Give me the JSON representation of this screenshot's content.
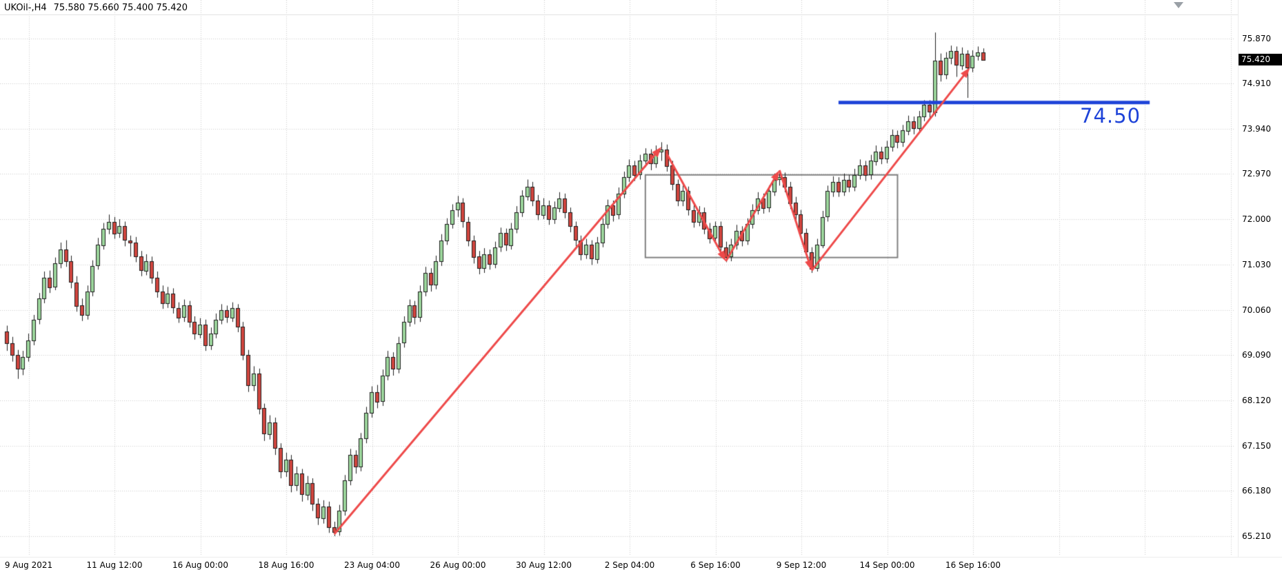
{
  "window": {
    "title_symbol": "UKOil-,H4",
    "title_ohlc": "75.580 75.660 75.400 75.420"
  },
  "chart_data": {
    "type": "candlestick",
    "symbol": "UKOil-",
    "timeframe": "H4",
    "last_candle_ohlc": {
      "open": "75.580",
      "high": "75.660",
      "low": "75.400",
      "close": "75.420"
    },
    "current_price": "75.420",
    "grid": true,
    "visible_price_range": [
      64.95,
      76.25
    ],
    "price_axis_labels": [
      "75.870",
      "74.910",
      "73.940",
      "72.970",
      "72.000",
      "71.030",
      "70.060",
      "69.090",
      "68.120",
      "67.150",
      "66.180",
      "65.210"
    ],
    "time_axis_labels": [
      "9 Aug 2021",
      "11 Aug 12:00",
      "16 Aug 00:00",
      "18 Aug 16:00",
      "23 Aug 04:00",
      "26 Aug 00:00",
      "30 Aug 12:00",
      "2 Sep 04:00",
      "6 Sep 16:00",
      "9 Sep 12:00",
      "14 Sep 00:00",
      "16 Sep 16:00"
    ],
    "candle_format": "[open, high, low, close]",
    "candles": [
      [
        69.6,
        69.72,
        69.18,
        69.35
      ],
      [
        69.35,
        69.48,
        68.95,
        69.1
      ],
      [
        69.1,
        69.2,
        68.58,
        68.8
      ],
      [
        68.8,
        69.18,
        68.66,
        69.05
      ],
      [
        69.05,
        69.55,
        68.95,
        69.4
      ],
      [
        69.4,
        69.95,
        69.3,
        69.85
      ],
      [
        69.85,
        70.42,
        69.75,
        70.3
      ],
      [
        70.3,
        70.88,
        70.2,
        70.75
      ],
      [
        70.75,
        70.9,
        70.42,
        70.55
      ],
      [
        70.55,
        71.18,
        70.48,
        71.05
      ],
      [
        71.05,
        71.5,
        70.95,
        71.35
      ],
      [
        71.35,
        71.55,
        70.98,
        71.1
      ],
      [
        71.1,
        71.22,
        70.52,
        70.65
      ],
      [
        70.65,
        70.78,
        70.02,
        70.15
      ],
      [
        70.15,
        70.3,
        69.82,
        69.95
      ],
      [
        69.95,
        70.58,
        69.85,
        70.45
      ],
      [
        70.45,
        71.12,
        70.35,
        71.0
      ],
      [
        71.0,
        71.6,
        70.92,
        71.45
      ],
      [
        71.45,
        71.92,
        71.35,
        71.8
      ],
      [
        71.8,
        72.1,
        71.68,
        71.95
      ],
      [
        71.95,
        72.05,
        71.58,
        71.7
      ],
      [
        71.7,
        72.0,
        71.6,
        71.85
      ],
      [
        71.85,
        71.95,
        71.42,
        71.55
      ],
      [
        71.55,
        71.65,
        71.2,
        71.5
      ],
      [
        71.5,
        71.62,
        71.08,
        71.2
      ],
      [
        71.2,
        71.32,
        70.78,
        70.9
      ],
      [
        70.9,
        71.25,
        70.8,
        71.1
      ],
      [
        71.1,
        71.2,
        70.62,
        70.75
      ],
      [
        70.75,
        70.88,
        70.32,
        70.45
      ],
      [
        70.45,
        70.58,
        70.08,
        70.2
      ],
      [
        70.2,
        70.55,
        70.1,
        70.4
      ],
      [
        70.4,
        70.52,
        69.98,
        70.1
      ],
      [
        70.1,
        70.22,
        69.78,
        69.9
      ],
      [
        69.9,
        70.28,
        69.8,
        70.15
      ],
      [
        70.15,
        70.25,
        69.68,
        69.8
      ],
      [
        69.8,
        69.92,
        69.42,
        69.55
      ],
      [
        69.55,
        69.88,
        69.45,
        69.75
      ],
      [
        69.75,
        69.85,
        69.18,
        69.3
      ],
      [
        69.3,
        69.68,
        69.2,
        69.55
      ],
      [
        69.55,
        69.98,
        69.45,
        69.85
      ],
      [
        69.85,
        70.18,
        69.75,
        70.05
      ],
      [
        70.05,
        70.15,
        69.78,
        69.9
      ],
      [
        69.9,
        70.22,
        69.8,
        70.1
      ],
      [
        70.1,
        70.18,
        69.58,
        69.7
      ],
      [
        69.7,
        69.8,
        68.98,
        69.1
      ],
      [
        69.1,
        69.2,
        68.3,
        68.45
      ],
      [
        68.45,
        68.85,
        68.32,
        68.7
      ],
      [
        68.7,
        68.8,
        67.82,
        67.95
      ],
      [
        67.95,
        68.05,
        67.25,
        67.4
      ],
      [
        67.4,
        67.8,
        67.28,
        67.65
      ],
      [
        67.65,
        67.75,
        66.95,
        67.1
      ],
      [
        67.1,
        67.2,
        66.45,
        66.6
      ],
      [
        66.6,
        67.0,
        66.48,
        66.85
      ],
      [
        66.85,
        66.95,
        66.15,
        66.3
      ],
      [
        66.3,
        66.7,
        66.18,
        66.55
      ],
      [
        66.55,
        66.65,
        65.95,
        66.1
      ],
      [
        66.1,
        66.5,
        65.98,
        66.35
      ],
      [
        66.35,
        66.45,
        65.75,
        65.9
      ],
      [
        65.9,
        66.02,
        65.45,
        65.6
      ],
      [
        65.6,
        65.98,
        65.48,
        65.85
      ],
      [
        65.85,
        65.95,
        65.28,
        65.4
      ],
      [
        65.4,
        65.52,
        65.21,
        65.3
      ],
      [
        65.3,
        65.88,
        65.22,
        65.75
      ],
      [
        65.75,
        66.52,
        65.65,
        66.4
      ],
      [
        66.4,
        67.08,
        66.3,
        66.95
      ],
      [
        66.95,
        67.05,
        66.55,
        66.7
      ],
      [
        66.7,
        67.42,
        66.6,
        67.3
      ],
      [
        67.3,
        67.98,
        67.2,
        67.85
      ],
      [
        67.85,
        68.42,
        67.75,
        68.3
      ],
      [
        68.3,
        68.45,
        67.95,
        68.1
      ],
      [
        68.1,
        68.78,
        68.0,
        68.65
      ],
      [
        68.65,
        69.18,
        68.55,
        69.05
      ],
      [
        69.05,
        69.15,
        68.65,
        68.8
      ],
      [
        68.8,
        69.48,
        68.7,
        69.35
      ],
      [
        69.35,
        69.92,
        69.25,
        69.8
      ],
      [
        69.8,
        70.28,
        69.7,
        70.15
      ],
      [
        70.15,
        70.25,
        69.75,
        69.9
      ],
      [
        69.9,
        70.58,
        69.8,
        70.45
      ],
      [
        70.45,
        70.98,
        70.35,
        70.85
      ],
      [
        70.85,
        70.95,
        70.45,
        70.6
      ],
      [
        70.6,
        71.22,
        70.5,
        71.1
      ],
      [
        71.1,
        71.68,
        71.0,
        71.55
      ],
      [
        71.55,
        72.02,
        71.45,
        71.9
      ],
      [
        71.9,
        72.32,
        71.8,
        72.2
      ],
      [
        72.2,
        72.5,
        72.05,
        72.35
      ],
      [
        72.35,
        72.45,
        71.82,
        71.95
      ],
      [
        71.95,
        72.05,
        71.42,
        71.55
      ],
      [
        71.55,
        71.65,
        71.05,
        71.2
      ],
      [
        71.2,
        71.32,
        70.82,
        70.95
      ],
      [
        70.95,
        71.38,
        70.85,
        71.25
      ],
      [
        71.25,
        71.35,
        70.92,
        71.05
      ],
      [
        71.05,
        71.52,
        70.95,
        71.4
      ],
      [
        71.4,
        71.82,
        71.3,
        71.7
      ],
      [
        71.7,
        71.8,
        71.32,
        71.45
      ],
      [
        71.45,
        71.92,
        71.35,
        71.8
      ],
      [
        71.8,
        72.28,
        71.7,
        72.15
      ],
      [
        72.15,
        72.62,
        72.05,
        72.5
      ],
      [
        72.5,
        72.85,
        72.4,
        72.7
      ],
      [
        72.7,
        72.8,
        72.28,
        72.4
      ],
      [
        72.4,
        72.52,
        71.98,
        72.1
      ],
      [
        72.1,
        72.45,
        72.0,
        72.3
      ],
      [
        72.3,
        72.4,
        71.88,
        72.0
      ],
      [
        72.0,
        72.38,
        71.9,
        72.25
      ],
      [
        72.25,
        72.58,
        72.15,
        72.45
      ],
      [
        72.45,
        72.55,
        72.02,
        72.15
      ],
      [
        72.15,
        72.25,
        71.72,
        71.85
      ],
      [
        71.85,
        71.95,
        71.42,
        71.55
      ],
      [
        71.55,
        71.65,
        71.12,
        71.25
      ],
      [
        71.25,
        71.58,
        71.15,
        71.45
      ],
      [
        71.45,
        71.55,
        71.02,
        71.15
      ],
      [
        71.15,
        71.62,
        71.05,
        71.5
      ],
      [
        71.5,
        72.02,
        71.4,
        71.9
      ],
      [
        71.9,
        72.42,
        71.8,
        72.3
      ],
      [
        72.3,
        72.4,
        71.95,
        72.1
      ],
      [
        72.1,
        72.68,
        72.0,
        72.55
      ],
      [
        72.55,
        73.02,
        72.45,
        72.9
      ],
      [
        72.9,
        73.28,
        72.8,
        73.15
      ],
      [
        73.15,
        73.25,
        72.82,
        72.95
      ],
      [
        72.95,
        73.38,
        72.85,
        73.25
      ],
      [
        73.25,
        73.52,
        73.12,
        73.4
      ],
      [
        73.4,
        73.5,
        73.05,
        73.2
      ],
      [
        73.2,
        73.58,
        73.1,
        73.45
      ],
      [
        73.45,
        73.65,
        73.25,
        73.5
      ],
      [
        73.5,
        73.6,
        73.02,
        73.15
      ],
      [
        73.15,
        73.25,
        72.62,
        72.75
      ],
      [
        72.75,
        72.85,
        72.28,
        72.4
      ],
      [
        72.4,
        72.72,
        72.28,
        72.6
      ],
      [
        72.6,
        72.7,
        72.08,
        72.2
      ],
      [
        72.2,
        72.32,
        71.82,
        71.95
      ],
      [
        71.95,
        72.28,
        71.85,
        72.15
      ],
      [
        72.15,
        72.25,
        71.68,
        71.8
      ],
      [
        71.8,
        71.92,
        71.48,
        71.6
      ],
      [
        71.6,
        71.95,
        71.5,
        71.85
      ],
      [
        71.85,
        71.95,
        71.28,
        71.4
      ],
      [
        71.4,
        71.52,
        71.08,
        71.2
      ],
      [
        71.2,
        71.58,
        71.1,
        71.45
      ],
      [
        71.45,
        71.88,
        71.35,
        71.75
      ],
      [
        71.75,
        71.85,
        71.42,
        71.55
      ],
      [
        71.55,
        72.02,
        71.45,
        71.9
      ],
      [
        71.9,
        72.32,
        71.8,
        72.2
      ],
      [
        72.2,
        72.58,
        72.1,
        72.45
      ],
      [
        72.45,
        72.55,
        72.12,
        72.25
      ],
      [
        72.25,
        72.72,
        72.15,
        72.6
      ],
      [
        72.6,
        72.98,
        72.5,
        72.85
      ],
      [
        72.85,
        73.05,
        72.72,
        72.9
      ],
      [
        72.9,
        73.0,
        72.58,
        72.7
      ],
      [
        72.7,
        72.8,
        72.22,
        72.35
      ],
      [
        72.35,
        72.48,
        71.98,
        72.1
      ],
      [
        72.1,
        72.2,
        71.58,
        71.7
      ],
      [
        71.7,
        71.8,
        71.18,
        71.3
      ],
      [
        71.3,
        71.4,
        70.85,
        70.95
      ],
      [
        70.95,
        71.58,
        70.88,
        71.45
      ],
      [
        71.45,
        72.18,
        71.38,
        72.05
      ],
      [
        72.05,
        72.72,
        71.95,
        72.6
      ],
      [
        72.6,
        72.92,
        72.48,
        72.8
      ],
      [
        72.8,
        72.9,
        72.48,
        72.6
      ],
      [
        72.6,
        72.98,
        72.5,
        72.85
      ],
      [
        72.85,
        72.95,
        72.58,
        72.7
      ],
      [
        72.7,
        73.08,
        72.6,
        72.95
      ],
      [
        72.95,
        73.28,
        72.85,
        73.15
      ],
      [
        73.15,
        73.25,
        72.82,
        72.95
      ],
      [
        72.95,
        73.38,
        72.85,
        73.25
      ],
      [
        73.25,
        73.58,
        73.15,
        73.45
      ],
      [
        73.45,
        73.55,
        73.18,
        73.3
      ],
      [
        73.3,
        73.68,
        73.2,
        73.55
      ],
      [
        73.55,
        73.92,
        73.45,
        73.8
      ],
      [
        73.8,
        73.9,
        73.52,
        73.65
      ],
      [
        73.65,
        74.02,
        73.55,
        73.9
      ],
      [
        73.9,
        74.22,
        73.8,
        74.1
      ],
      [
        74.1,
        74.2,
        73.82,
        73.95
      ],
      [
        73.95,
        74.32,
        73.85,
        74.2
      ],
      [
        74.2,
        74.55,
        74.1,
        74.45
      ],
      [
        74.45,
        74.55,
        74.15,
        74.3
      ],
      [
        74.3,
        76.0,
        74.2,
        75.4
      ],
      [
        75.4,
        75.55,
        74.95,
        75.1
      ],
      [
        75.1,
        75.58,
        75.0,
        75.45
      ],
      [
        75.45,
        75.72,
        75.32,
        75.6
      ],
      [
        75.6,
        75.7,
        75.05,
        75.3
      ],
      [
        75.3,
        75.68,
        75.2,
        75.55
      ],
      [
        75.55,
        75.62,
        74.6,
        75.25
      ],
      [
        75.25,
        75.62,
        75.15,
        75.5
      ],
      [
        75.5,
        75.7,
        75.4,
        75.58
      ],
      [
        75.58,
        75.66,
        75.4,
        75.42
      ]
    ],
    "annotations": {
      "support_line": {
        "price": 74.5,
        "label": "74.50",
        "from_index": 155,
        "to_index": 213
      },
      "range_box": {
        "from_index": 119,
        "to_index": 166,
        "top_price": 72.95,
        "bottom_price": 71.18
      },
      "trend_arrows": [
        {
          "from": [
            61,
            65.25
          ],
          "to": [
            122,
            73.55
          ]
        },
        {
          "from": [
            123,
            73.4
          ],
          "to": [
            134,
            71.1
          ]
        },
        {
          "from": [
            134,
            71.1
          ],
          "to": [
            144,
            73.05
          ]
        },
        {
          "from": [
            144,
            73.05
          ],
          "to": [
            150,
            70.9
          ]
        },
        {
          "from": [
            150,
            70.9
          ],
          "to": [
            179.5,
            75.25
          ]
        }
      ]
    }
  },
  "colors": {
    "background": "#FFFFFF",
    "grid": "#CBCBCB",
    "candle_up_fill": "#9CD69C",
    "candle_down_fill": "#D0453E",
    "candle_border": "#1C1C1C",
    "wick": "#1C1C1C",
    "axis_text": "#000000",
    "price_badge_bg": "#000000",
    "price_badge_text": "#FFFFFF",
    "support_line": "#1E43D8",
    "arrow": "#EE4A4A",
    "range_box": "#808080"
  }
}
